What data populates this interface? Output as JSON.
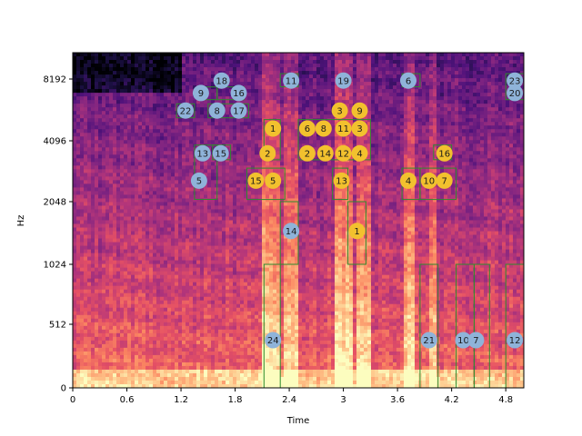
{
  "chart_data": {
    "type": "heatmap",
    "title": "",
    "xlabel": "Time",
    "ylabel": "Hz",
    "xlim": [
      0,
      5.0
    ],
    "ylim": [
      0,
      11025
    ],
    "y_scale": "log2-like (spectrogram)",
    "x_ticks": [
      {
        "value": 0,
        "label": "0"
      },
      {
        "value": 0.6,
        "label": "0.6"
      },
      {
        "value": 1.2,
        "label": "1.2"
      },
      {
        "value": 1.8,
        "label": "1.8"
      },
      {
        "value": 2.4,
        "label": "2.4"
      },
      {
        "value": 3.0,
        "label": "3"
      },
      {
        "value": 3.6,
        "label": "3.6"
      },
      {
        "value": 4.2,
        "label": "4.2"
      },
      {
        "value": 4.8,
        "label": "4.8"
      }
    ],
    "y_ticks": [
      {
        "value": 0,
        "label": "0"
      },
      {
        "value": 512,
        "label": "512"
      },
      {
        "value": 1024,
        "label": "1024"
      },
      {
        "value": 2048,
        "label": "2048"
      },
      {
        "value": 4096,
        "label": "4096"
      },
      {
        "value": 8192,
        "label": "8192"
      }
    ],
    "colormap": "magma",
    "colors": {
      "blue_marker": "#8fb3d9",
      "yellow_marker": "#f2c12e",
      "box": "#2e8b2e"
    },
    "blue_markers": [
      {
        "label": "18",
        "time": 1.65,
        "hz": 8050
      },
      {
        "label": "11",
        "time": 2.42,
        "hz": 8050
      },
      {
        "label": "19",
        "time": 3.0,
        "hz": 8050
      },
      {
        "label": "6",
        "time": 3.72,
        "hz": 8050
      },
      {
        "label": "23",
        "time": 4.9,
        "hz": 8050
      },
      {
        "label": "9",
        "time": 1.42,
        "hz": 7000
      },
      {
        "label": "16",
        "time": 1.84,
        "hz": 7000
      },
      {
        "label": "20",
        "time": 4.9,
        "hz": 7000
      },
      {
        "label": "22",
        "time": 1.25,
        "hz": 5750
      },
      {
        "label": "8",
        "time": 1.6,
        "hz": 5750
      },
      {
        "label": "17",
        "time": 1.84,
        "hz": 5750
      },
      {
        "label": "13",
        "time": 1.44,
        "hz": 3550
      },
      {
        "label": "15",
        "time": 1.64,
        "hz": 3550
      },
      {
        "label": "5",
        "time": 1.4,
        "hz": 2600
      },
      {
        "label": "14",
        "time": 2.42,
        "hz": 1480
      },
      {
        "label": "24",
        "time": 2.22,
        "hz": 384
      },
      {
        "label": "21",
        "time": 3.95,
        "hz": 384
      },
      {
        "label": "10",
        "time": 4.33,
        "hz": 384
      },
      {
        "label": "7",
        "time": 4.47,
        "hz": 384
      },
      {
        "label": "12",
        "time": 4.9,
        "hz": 384
      }
    ],
    "yellow_markers": [
      {
        "label": "3",
        "time": 2.96,
        "hz": 5750
      },
      {
        "label": "9",
        "time": 3.18,
        "hz": 5750
      },
      {
        "label": "1",
        "time": 2.22,
        "hz": 4700
      },
      {
        "label": "6",
        "time": 2.6,
        "hz": 4700
      },
      {
        "label": "8",
        "time": 2.78,
        "hz": 4700
      },
      {
        "label": "11",
        "time": 3.0,
        "hz": 4700
      },
      {
        "label": "3",
        "time": 3.18,
        "hz": 4700
      },
      {
        "label": "2",
        "time": 2.16,
        "hz": 3550
      },
      {
        "label": "2",
        "time": 2.6,
        "hz": 3550
      },
      {
        "label": "14",
        "time": 2.8,
        "hz": 3550
      },
      {
        "label": "12",
        "time": 3.0,
        "hz": 3550
      },
      {
        "label": "4",
        "time": 3.18,
        "hz": 3550
      },
      {
        "label": "16",
        "time": 4.12,
        "hz": 3550
      },
      {
        "label": "15",
        "time": 2.03,
        "hz": 2600
      },
      {
        "label": "5",
        "time": 2.22,
        "hz": 2600
      },
      {
        "label": "13",
        "time": 2.98,
        "hz": 2600
      },
      {
        "label": "4",
        "time": 3.72,
        "hz": 2600
      },
      {
        "label": "10",
        "time": 3.95,
        "hz": 2600
      },
      {
        "label": "7",
        "time": 4.12,
        "hz": 2600
      },
      {
        "label": "1",
        "time": 3.15,
        "hz": 1480
      }
    ],
    "boxes": [
      {
        "t0": 1.4,
        "t1": 1.6,
        "f0": 6500,
        "f1": 7500
      },
      {
        "t0": 1.6,
        "t1": 1.9,
        "f0": 6500,
        "f1": 7500
      },
      {
        "t0": 1.15,
        "t1": 1.35,
        "f0": 5300,
        "f1": 6200
      },
      {
        "t0": 1.5,
        "t1": 1.95,
        "f0": 5300,
        "f1": 6200
      },
      {
        "t0": 1.35,
        "t1": 1.6,
        "f0": 2100,
        "f1": 3900
      },
      {
        "t0": 1.55,
        "t1": 1.75,
        "f0": 3300,
        "f1": 3900
      },
      {
        "t0": 2.3,
        "t1": 2.5,
        "f0": 7500,
        "f1": 8700
      },
      {
        "t0": 3.65,
        "t1": 3.85,
        "f0": 7500,
        "f1": 8700
      },
      {
        "t0": 4.8,
        "t1": 5.0,
        "f0": 6500,
        "f1": 8700
      },
      {
        "t0": 2.12,
        "t1": 2.3,
        "f0": 3300,
        "f1": 5200
      },
      {
        "t0": 1.93,
        "t1": 2.35,
        "f0": 2100,
        "f1": 3000
      },
      {
        "t0": 2.5,
        "t1": 3.3,
        "f0": 3300,
        "f1": 5200
      },
      {
        "t0": 2.88,
        "t1": 3.05,
        "f0": 2100,
        "f1": 3000
      },
      {
        "t0": 3.65,
        "t1": 3.85,
        "f0": 2100,
        "f1": 3000
      },
      {
        "t0": 3.85,
        "t1": 4.25,
        "f0": 2100,
        "f1": 3000
      },
      {
        "t0": 4.0,
        "t1": 4.2,
        "f0": 3300,
        "f1": 3900
      },
      {
        "t0": 2.3,
        "t1": 2.5,
        "f0": 1024,
        "f1": 2048
      },
      {
        "t0": 3.05,
        "t1": 3.25,
        "f0": 1024,
        "f1": 2048
      },
      {
        "t0": 2.12,
        "t1": 2.3,
        "f0": 0,
        "f1": 1024
      },
      {
        "t0": 3.85,
        "t1": 4.05,
        "f0": 0,
        "f1": 1024
      },
      {
        "t0": 4.25,
        "t1": 4.45,
        "f0": 0,
        "f1": 1024
      },
      {
        "t0": 4.45,
        "t1": 4.62,
        "f0": 0,
        "f1": 1024
      },
      {
        "t0": 4.8,
        "t1": 5.0,
        "f0": 0,
        "f1": 1024
      }
    ]
  }
}
